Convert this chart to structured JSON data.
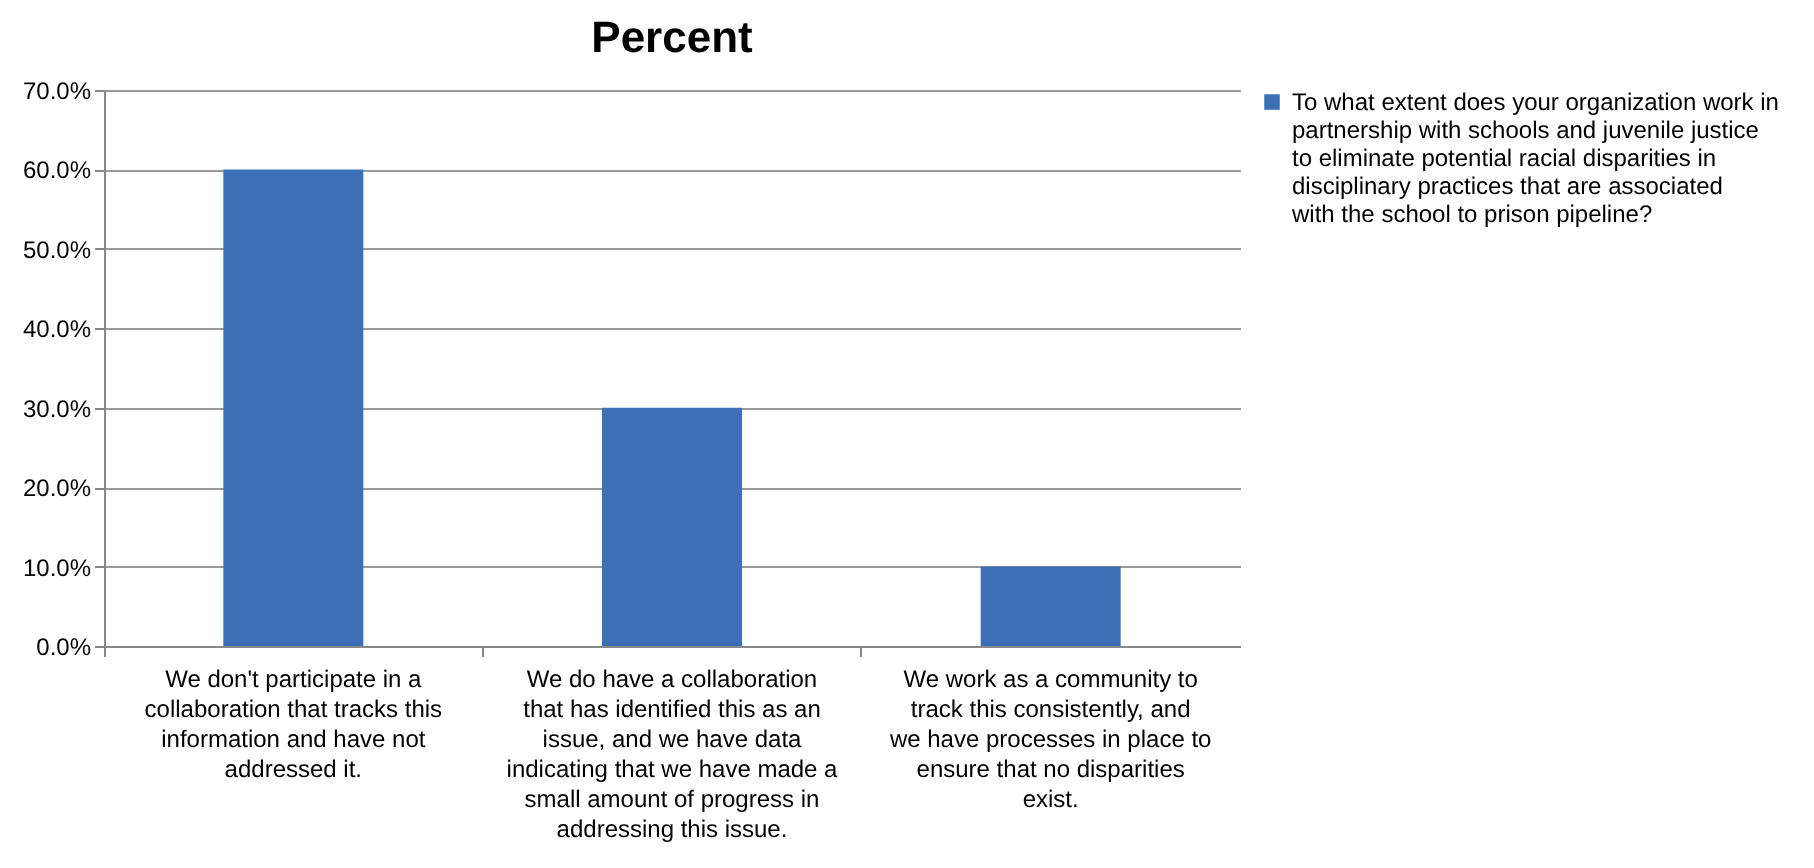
{
  "chart_data": {
    "type": "bar",
    "title": "Percent",
    "categories": [
      "We don't participate in a collaboration that tracks this information and have not addressed it.",
      "We do have a collaboration that has identified this as an issue, and we have data indicating that we have made a small amount of progress in addressing this issue.",
      "We work as a community to track this consistently, and we have processes in place to ensure that no disparities exist."
    ],
    "series": [
      {
        "name": "To what extent does your organization work in partnership with schools and juvenile justice to eliminate potential racial disparities in disciplinary practices that are associated with the school to prison pipeline?",
        "color": "#3a6fb6",
        "values": [
          60,
          30,
          10
        ]
      }
    ],
    "ylim": [
      0,
      70
    ],
    "yticks": [
      {
        "value": 0,
        "label": "0.0%"
      },
      {
        "value": 10,
        "label": "10.0%"
      },
      {
        "value": 20,
        "label": "20.0%"
      },
      {
        "value": 30,
        "label": "30.0%"
      },
      {
        "value": 40,
        "label": "40.0%"
      },
      {
        "value": 50,
        "label": "50.0%"
      },
      {
        "value": 60,
        "label": "60.0%"
      },
      {
        "value": 70,
        "label": "70.0%"
      }
    ],
    "grid": true,
    "legend": "right"
  }
}
